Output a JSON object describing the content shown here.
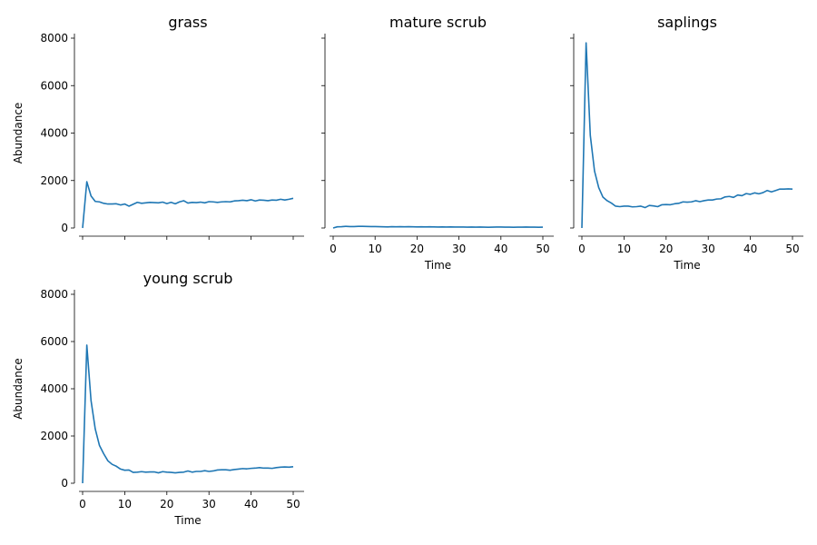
{
  "chart_data": [
    {
      "type": "line",
      "title": "grass",
      "xlabel": "",
      "ylabel": "Abundance",
      "xlim": [
        0,
        50
      ],
      "ylim": [
        0,
        8000
      ],
      "xticks": [
        0,
        10,
        20,
        30,
        40,
        50
      ],
      "xtick_labels_shown": false,
      "yticks": [
        0,
        2000,
        4000,
        6000,
        8000
      ],
      "ytick_labels_shown": true,
      "grid": false,
      "series": [
        {
          "color": "#1f77b4",
          "x": [
            0,
            1,
            2,
            3,
            4,
            5,
            6,
            7,
            8,
            9,
            10,
            11,
            12,
            13,
            14,
            15,
            16,
            17,
            18,
            19,
            20,
            21,
            22,
            23,
            24,
            25,
            26,
            27,
            28,
            29,
            30,
            31,
            32,
            33,
            34,
            35,
            36,
            37,
            38,
            39,
            40,
            41,
            42,
            43,
            44,
            45,
            46,
            47,
            48,
            49,
            50
          ],
          "values": [
            0,
            1950,
            1350,
            1120,
            1100,
            1040,
            1010,
            1010,
            1020,
            970,
            1010,
            920,
            1000,
            1080,
            1040,
            1060,
            1080,
            1070,
            1060,
            1090,
            1030,
            1080,
            1020,
            1100,
            1150,
            1050,
            1080,
            1070,
            1090,
            1060,
            1110,
            1100,
            1080,
            1100,
            1110,
            1100,
            1140,
            1150,
            1170,
            1150,
            1190,
            1140,
            1180,
            1170,
            1150,
            1180,
            1170,
            1210,
            1180,
            1210,
            1250
          ]
        }
      ]
    },
    {
      "type": "line",
      "title": "mature scrub",
      "xlabel": "Time",
      "ylabel": "",
      "xlim": [
        0,
        50
      ],
      "ylim": [
        0,
        8000
      ],
      "xticks": [
        0,
        10,
        20,
        30,
        40,
        50
      ],
      "xtick_labels_shown": true,
      "yticks": [
        0,
        2000,
        4000,
        6000,
        8000
      ],
      "ytick_labels_shown": false,
      "grid": false,
      "series": [
        {
          "color": "#1f77b4",
          "x": [
            0,
            1,
            2,
            3,
            4,
            5,
            6,
            7,
            8,
            9,
            10,
            11,
            12,
            13,
            14,
            15,
            16,
            17,
            18,
            19,
            20,
            21,
            22,
            23,
            24,
            25,
            26,
            27,
            28,
            29,
            30,
            31,
            32,
            33,
            34,
            35,
            36,
            37,
            38,
            39,
            40,
            41,
            42,
            43,
            44,
            45,
            46,
            47,
            48,
            49,
            50
          ],
          "values": [
            0,
            50,
            55,
            70,
            60,
            60,
            70,
            70,
            65,
            60,
            60,
            55,
            50,
            45,
            55,
            50,
            55,
            50,
            55,
            50,
            45,
            50,
            45,
            50,
            45,
            40,
            45,
            40,
            45,
            40,
            40,
            40,
            35,
            40,
            35,
            40,
            35,
            30,
            35,
            40,
            40,
            35,
            35,
            30,
            35,
            35,
            40,
            35,
            35,
            30,
            35
          ]
        }
      ]
    },
    {
      "type": "line",
      "title": "saplings",
      "xlabel": "Time",
      "ylabel": "",
      "xlim": [
        0,
        50
      ],
      "ylim": [
        0,
        8000
      ],
      "xticks": [
        0,
        10,
        20,
        30,
        40,
        50
      ],
      "xtick_labels_shown": true,
      "yticks": [
        0,
        2000,
        4000,
        6000,
        8000
      ],
      "ytick_labels_shown": false,
      "grid": false,
      "series": [
        {
          "color": "#1f77b4",
          "x": [
            0,
            1,
            2,
            3,
            4,
            5,
            6,
            7,
            8,
            9,
            10,
            11,
            12,
            13,
            14,
            15,
            16,
            17,
            18,
            19,
            20,
            21,
            22,
            23,
            24,
            25,
            26,
            27,
            28,
            29,
            30,
            31,
            32,
            33,
            34,
            35,
            36,
            37,
            38,
            39,
            40,
            41,
            42,
            43,
            44,
            45,
            46,
            47,
            48,
            49,
            50
          ],
          "values": [
            0,
            7800,
            3900,
            2400,
            1700,
            1300,
            1150,
            1050,
            920,
            900,
            920,
            920,
            890,
            900,
            920,
            860,
            950,
            930,
            900,
            980,
            990,
            980,
            1020,
            1040,
            1100,
            1090,
            1100,
            1150,
            1110,
            1150,
            1180,
            1180,
            1220,
            1230,
            1310,
            1330,
            1290,
            1390,
            1360,
            1450,
            1420,
            1480,
            1440,
            1490,
            1580,
            1520,
            1580,
            1640,
            1640,
            1650,
            1640
          ]
        }
      ]
    },
    {
      "type": "line",
      "title": "young scrub",
      "xlabel": "Time",
      "ylabel": "Abundance",
      "xlim": [
        0,
        50
      ],
      "ylim": [
        0,
        8000
      ],
      "xticks": [
        0,
        10,
        20,
        30,
        40,
        50
      ],
      "xtick_labels_shown": true,
      "yticks": [
        0,
        2000,
        4000,
        6000,
        8000
      ],
      "ytick_labels_shown": true,
      "grid": false,
      "series": [
        {
          "color": "#1f77b4",
          "x": [
            0,
            1,
            2,
            3,
            4,
            5,
            6,
            7,
            8,
            9,
            10,
            11,
            12,
            13,
            14,
            15,
            16,
            17,
            18,
            19,
            20,
            21,
            22,
            23,
            24,
            25,
            26,
            27,
            28,
            29,
            30,
            31,
            32,
            33,
            34,
            35,
            36,
            37,
            38,
            39,
            40,
            41,
            42,
            43,
            44,
            45,
            46,
            47,
            48,
            49,
            50
          ],
          "values": [
            0,
            5850,
            3500,
            2300,
            1600,
            1250,
            950,
            800,
            720,
            600,
            550,
            560,
            460,
            470,
            490,
            470,
            480,
            480,
            440,
            490,
            470,
            460,
            440,
            460,
            470,
            520,
            470,
            500,
            500,
            530,
            500,
            520,
            560,
            570,
            570,
            550,
            580,
            600,
            620,
            610,
            630,
            640,
            660,
            640,
            640,
            630,
            660,
            680,
            690,
            680,
            700
          ]
        }
      ]
    }
  ]
}
